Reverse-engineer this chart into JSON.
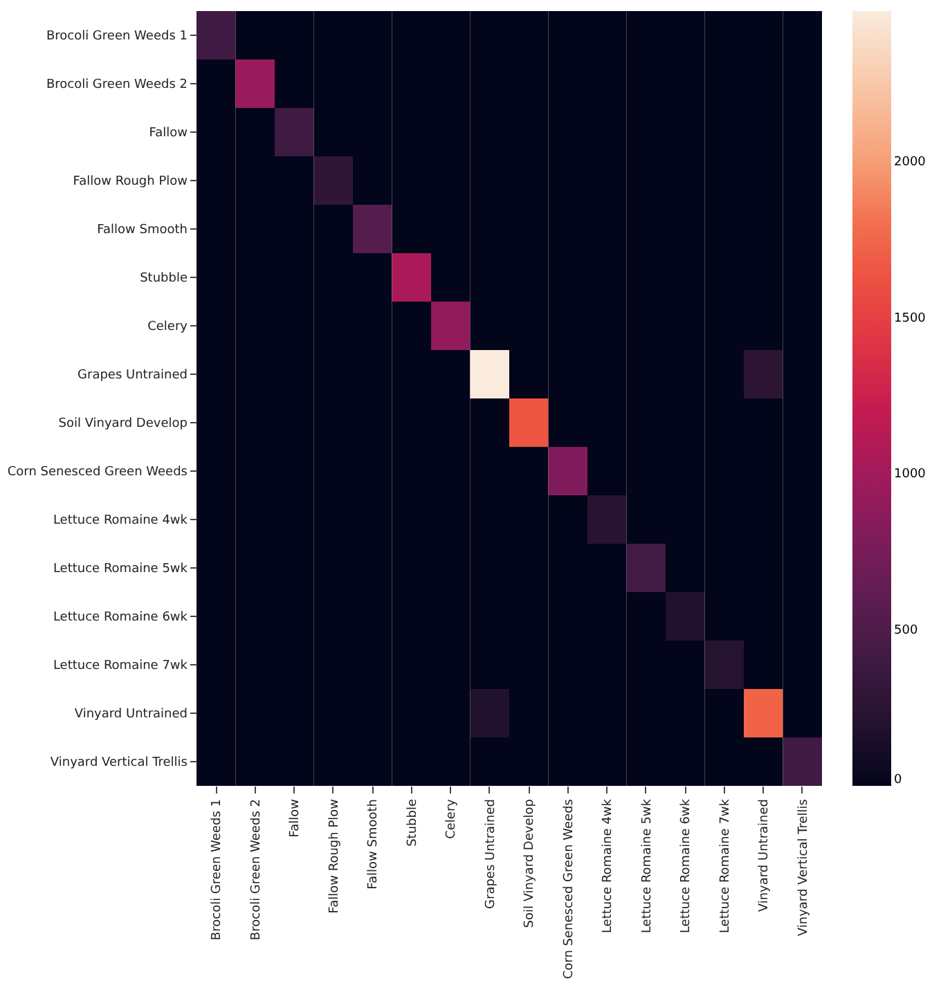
{
  "chart_data": {
    "type": "heatmap",
    "categories": [
      "Brocoli Green Weeds 1",
      "Brocoli Green Weeds 2",
      "Fallow",
      "Fallow Rough Plow",
      "Fallow Smooth",
      "Stubble",
      "Celery",
      "Grapes Untrained",
      "Soil Vinyard Develop",
      "Corn Senesced Green Weeds",
      "Lettuce Romaine 4wk",
      "Lettuce Romaine 5wk",
      "Lettuce Romaine 6wk",
      "Lettuce Romaine 7wk",
      "Vinyard Untrained",
      "Vinyard Vertical Trellis"
    ],
    "y_categories": [
      "Brocoli Green Weeds 1",
      "Brocoli Green Weeds 2",
      "Fallow",
      "Fallow Rough Plow",
      "Fallow Smooth",
      "Stubble",
      "Celery",
      "Grapes Untrained",
      "Soil Vinyard Develop",
      "Corn Senesced Green Weeds",
      "Lettuce Romaine 4wk",
      "Lettuce Romaine 5wk",
      "Lettuce Romaine 6wk",
      "Lettuce Romaine 7wk",
      "Vinyard Untrained",
      "Vinyard Vertical Trellis"
    ],
    "cells": [
      [
        400,
        0,
        0,
        0,
        0,
        0,
        0,
        0,
        0,
        0,
        0,
        0,
        0,
        0,
        0,
        0
      ],
      [
        0,
        950,
        0,
        0,
        0,
        0,
        0,
        0,
        0,
        0,
        0,
        0,
        0,
        0,
        0,
        0
      ],
      [
        0,
        0,
        400,
        0,
        0,
        0,
        0,
        0,
        0,
        0,
        0,
        0,
        0,
        0,
        0,
        0
      ],
      [
        0,
        0,
        0,
        280,
        0,
        0,
        0,
        0,
        0,
        0,
        0,
        0,
        0,
        0,
        0,
        0
      ],
      [
        0,
        0,
        0,
        0,
        550,
        0,
        0,
        0,
        0,
        0,
        0,
        0,
        0,
        0,
        0,
        0
      ],
      [
        0,
        0,
        0,
        0,
        0,
        1050,
        0,
        0,
        0,
        0,
        0,
        0,
        0,
        0,
        0,
        0
      ],
      [
        0,
        0,
        0,
        0,
        0,
        0,
        900,
        0,
        0,
        0,
        0,
        0,
        0,
        0,
        0,
        0
      ],
      [
        0,
        0,
        0,
        0,
        0,
        0,
        0,
        2480,
        0,
        0,
        0,
        0,
        0,
        0,
        250,
        0
      ],
      [
        0,
        0,
        0,
        0,
        0,
        0,
        0,
        0,
        1650,
        0,
        0,
        0,
        0,
        0,
        0,
        0
      ],
      [
        0,
        0,
        0,
        0,
        0,
        0,
        0,
        0,
        0,
        800,
        0,
        0,
        0,
        0,
        0,
        0
      ],
      [
        0,
        0,
        0,
        0,
        0,
        0,
        0,
        0,
        0,
        0,
        230,
        0,
        0,
        0,
        0,
        0
      ],
      [
        0,
        0,
        0,
        0,
        0,
        0,
        0,
        0,
        0,
        0,
        0,
        420,
        0,
        0,
        0,
        0
      ],
      [
        0,
        0,
        0,
        0,
        0,
        0,
        0,
        0,
        0,
        0,
        0,
        0,
        180,
        0,
        0,
        0
      ],
      [
        0,
        0,
        0,
        0,
        0,
        0,
        0,
        0,
        0,
        0,
        0,
        0,
        0,
        220,
        0,
        0
      ],
      [
        0,
        0,
        0,
        0,
        0,
        0,
        0,
        180,
        0,
        0,
        0,
        0,
        0,
        0,
        1750,
        0
      ],
      [
        0,
        0,
        0,
        0,
        0,
        0,
        0,
        0,
        0,
        0,
        0,
        0,
        0,
        0,
        0,
        400
      ]
    ],
    "clim": [
      0,
      2480
    ],
    "cticks": [
      0,
      500,
      1000,
      1500,
      2000
    ]
  }
}
